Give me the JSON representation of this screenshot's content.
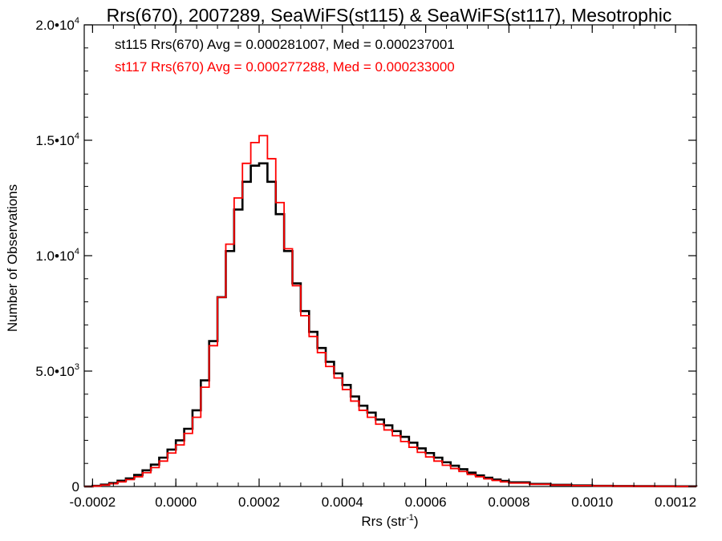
{
  "chart_data": {
    "type": "line",
    "title": "Rrs(670), 2007289, SeaWiFS(st115) & SeaWiFS(st117), Mesotrophic",
    "xlabel": "Rrs (str",
    "xlabel_sup": "-1",
    "xlabel_end": ")",
    "ylabel": "Number of Observations",
    "xlim": [
      -0.00022,
      0.00125
    ],
    "ylim": [
      0,
      20000
    ],
    "x_ticks": [
      {
        "value": -0.0002,
        "label": "-0.0002"
      },
      {
        "value": 0.0,
        "label": "0.0000"
      },
      {
        "value": 0.0002,
        "label": "0.0002"
      },
      {
        "value": 0.0004,
        "label": "0.0004"
      },
      {
        "value": 0.0006,
        "label": "0.0006"
      },
      {
        "value": 0.0008,
        "label": "0.0008"
      },
      {
        "value": 0.001,
        "label": "0.0010"
      },
      {
        "value": 0.0012,
        "label": "0.0012"
      }
    ],
    "y_ticks": [
      {
        "value": 0,
        "base": "0",
        "exp": ""
      },
      {
        "value": 5000,
        "base": "5.0•10",
        "exp": "3"
      },
      {
        "value": 10000,
        "base": "1.0•10",
        "exp": "4"
      },
      {
        "value": 15000,
        "base": "1.5•10",
        "exp": "4"
      },
      {
        "value": 20000,
        "base": "2.0•10",
        "exp": "4"
      }
    ],
    "legend_placement": "top-left",
    "legend": [
      {
        "text": "st115 Rrs(670) Avg = 0.000281007, Med = 0.000237001",
        "color": "#000000"
      },
      {
        "text": "st117 Rrs(670) Avg = 0.000277288, Med = 0.000233000",
        "color": "#ff0000"
      }
    ],
    "series": [
      {
        "name": "st115",
        "color": "#000000",
        "x": [
          -0.00022,
          -0.0002,
          -0.00018,
          -0.00016,
          -0.00014,
          -0.00012,
          -0.0001,
          -8e-05,
          -6e-05,
          -4e-05,
          -2e-05,
          0.0,
          2e-05,
          4e-05,
          6e-05,
          8e-05,
          0.0001,
          0.00012,
          0.00014,
          0.00016,
          0.00018,
          0.0002,
          0.00022,
          0.00024,
          0.00026,
          0.00028,
          0.0003,
          0.00032,
          0.00034,
          0.00036,
          0.00038,
          0.0004,
          0.00042,
          0.00044,
          0.00046,
          0.00048,
          0.0005,
          0.00052,
          0.00054,
          0.00056,
          0.00058,
          0.0006,
          0.00062,
          0.00064,
          0.00066,
          0.00068,
          0.0007,
          0.00072,
          0.00074,
          0.00076,
          0.00078,
          0.0008,
          0.00085,
          0.0009,
          0.00095,
          0.001,
          0.00105,
          0.0011,
          0.00115,
          0.0012,
          0.00125
        ],
        "y": [
          0,
          30,
          80,
          150,
          250,
          350,
          500,
          700,
          950,
          1250,
          1600,
          2000,
          2500,
          3300,
          4600,
          6300,
          8200,
          10200,
          12000,
          13200,
          13900,
          14000,
          13200,
          11800,
          10200,
          8800,
          7600,
          6700,
          6000,
          5400,
          4900,
          4400,
          3900,
          3500,
          3200,
          2900,
          2650,
          2400,
          2150,
          1900,
          1650,
          1450,
          1250,
          1050,
          900,
          750,
          600,
          480,
          380,
          300,
          240,
          180,
          110,
          70,
          45,
          30,
          20,
          15,
          10,
          5,
          0
        ]
      },
      {
        "name": "st117",
        "color": "#ff0000",
        "x": [
          -0.00022,
          -0.0002,
          -0.00018,
          -0.00016,
          -0.00014,
          -0.00012,
          -0.0001,
          -8e-05,
          -6e-05,
          -4e-05,
          -2e-05,
          0.0,
          2e-05,
          4e-05,
          6e-05,
          8e-05,
          0.0001,
          0.00012,
          0.00014,
          0.00016,
          0.00018,
          0.0002,
          0.00022,
          0.00024,
          0.00026,
          0.00028,
          0.0003,
          0.00032,
          0.00034,
          0.00036,
          0.00038,
          0.0004,
          0.00042,
          0.00044,
          0.00046,
          0.00048,
          0.0005,
          0.00052,
          0.00054,
          0.00056,
          0.00058,
          0.0006,
          0.00062,
          0.00064,
          0.00066,
          0.00068,
          0.0007,
          0.00072,
          0.00074,
          0.00076,
          0.00078,
          0.0008,
          0.00085,
          0.0009,
          0.00095,
          0.001,
          0.00105,
          0.0011,
          0.00115,
          0.0012,
          0.00125
        ],
        "y": [
          0,
          20,
          60,
          120,
          200,
          300,
          420,
          600,
          820,
          1100,
          1450,
          1800,
          2300,
          3000,
          4300,
          6100,
          8200,
          10500,
          12500,
          14000,
          14900,
          15200,
          14200,
          12300,
          10300,
          8700,
          7400,
          6500,
          5800,
          5200,
          4700,
          4200,
          3700,
          3300,
          3000,
          2700,
          2450,
          2200,
          1950,
          1700,
          1480,
          1280,
          1100,
          920,
          780,
          650,
          520,
          420,
          330,
          260,
          200,
          150,
          95,
          60,
          40,
          25,
          18,
          12,
          8,
          4,
          0
        ]
      }
    ]
  }
}
